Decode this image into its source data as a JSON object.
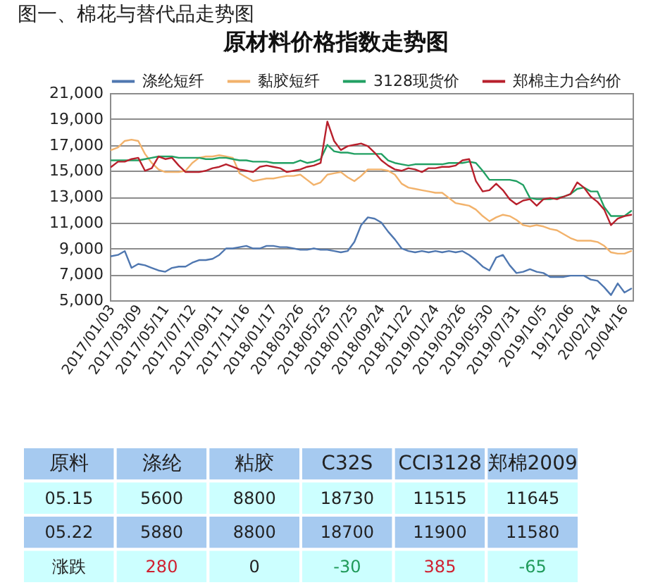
{
  "chart_data": [
    {
      "type": "line",
      "title": "原材料价格指数走势图",
      "annotations": [
        "图一、棉花与替代品走势图"
      ],
      "categories": [
        "2017/01/03",
        null,
        null,
        null,
        "2017/03/09",
        null,
        null,
        null,
        "2017/05/11",
        null,
        null,
        null,
        "2017/07/12",
        null,
        null,
        null,
        "2017/09/11",
        null,
        null,
        null,
        "2017/11/16",
        null,
        null,
        null,
        "2018/01/17",
        null,
        null,
        null,
        "2018/03/26",
        null,
        null,
        null,
        "2018/05/25",
        null,
        null,
        null,
        "2018/07/25",
        null,
        null,
        null,
        "2018/09/24",
        null,
        null,
        null,
        "2018/11/22",
        null,
        null,
        null,
        "2019/01/24",
        null,
        null,
        null,
        "2019/03/26",
        null,
        null,
        null,
        "2019/05/30",
        null,
        null,
        null,
        "2019/07/31",
        null,
        null,
        null,
        "2019/10/5",
        null,
        null,
        null,
        "19/12/06",
        null,
        null,
        null,
        "20/02/14",
        null,
        null,
        null,
        "20/04/16",
        null
      ],
      "series": [
        {
          "name": "涤纶短纤",
          "color": "#4f77b0",
          "values": [
            8400,
            8500,
            8800,
            7500,
            7800,
            7700,
            7500,
            7300,
            7200,
            7500,
            7600,
            7600,
            7900,
            8100,
            8100,
            8200,
            8500,
            9000,
            9000,
            9100,
            9200,
            9000,
            9000,
            9200,
            9200,
            9100,
            9100,
            9000,
            8900,
            8900,
            9000,
            8900,
            8900,
            8800,
            8700,
            8800,
            9500,
            10800,
            11400,
            11300,
            11000,
            10300,
            9700,
            9000,
            8800,
            8700,
            8800,
            8700,
            8800,
            8700,
            8800,
            8700,
            8800,
            8500,
            8100,
            7600,
            7300,
            8300,
            8500,
            7700,
            7100,
            7200,
            7400,
            7200,
            7100,
            6800,
            6800,
            6800,
            6900,
            6900,
            6900,
            6600,
            6500,
            6000,
            5400,
            6300,
            5600,
            5900
          ]
        },
        {
          "name": "黏胶短纤",
          "color": "#f2b26b",
          "values": [
            16600,
            16800,
            17300,
            17400,
            17300,
            16300,
            15600,
            15100,
            14900,
            14900,
            14900,
            15000,
            15600,
            16000,
            16100,
            16100,
            16200,
            16100,
            16000,
            14800,
            14500,
            14200,
            14300,
            14400,
            14400,
            14500,
            14600,
            14600,
            14700,
            14300,
            13900,
            14100,
            14700,
            14800,
            14900,
            14500,
            14200,
            14600,
            15100,
            15100,
            15100,
            15000,
            14700,
            14000,
            13700,
            13600,
            13500,
            13400,
            13300,
            13300,
            12900,
            12500,
            12400,
            12300,
            12000,
            11500,
            11100,
            11400,
            11600,
            11500,
            11200,
            10800,
            10700,
            10800,
            10700,
            10500,
            10400,
            10100,
            9800,
            9600,
            9600,
            9600,
            9500,
            9200,
            8700,
            8600,
            8600,
            8800
          ]
        },
        {
          "name": "3128现货价",
          "color": "#22a063",
          "values": [
            15800,
            15800,
            15800,
            15800,
            15800,
            15900,
            16000,
            16100,
            16100,
            16100,
            16000,
            16000,
            16000,
            16000,
            15900,
            15900,
            16000,
            16000,
            15900,
            15800,
            15800,
            15700,
            15700,
            15700,
            15600,
            15600,
            15600,
            15600,
            15800,
            15600,
            15700,
            15900,
            17000,
            16500,
            16400,
            16400,
            16300,
            16300,
            16300,
            16300,
            16300,
            15800,
            15600,
            15500,
            15400,
            15500,
            15500,
            15500,
            15500,
            15500,
            15600,
            15600,
            15600,
            15700,
            15600,
            15000,
            14300,
            14300,
            14300,
            14300,
            14200,
            13900,
            12900,
            12800,
            12800,
            12800,
            12900,
            13000,
            13200,
            13600,
            13700,
            13400,
            13400,
            12200,
            11500,
            11500,
            11500,
            11900
          ]
        },
        {
          "name": "郑棉主力合约价",
          "color": "#b8202c",
          "values": [
            15300,
            15700,
            15700,
            15900,
            16000,
            15000,
            15200,
            16100,
            15900,
            16000,
            15400,
            14900,
            14900,
            14900,
            15000,
            15200,
            15300,
            15500,
            15300,
            15100,
            15000,
            14900,
            15300,
            15400,
            15300,
            15200,
            14900,
            15000,
            15100,
            15300,
            15400,
            15600,
            18800,
            17300,
            16600,
            16900,
            17000,
            17100,
            16900,
            16400,
            15800,
            15400,
            15100,
            15000,
            15200,
            15100,
            14900,
            15200,
            15200,
            15300,
            15300,
            15400,
            15800,
            15900,
            14200,
            13400,
            13500,
            14000,
            13500,
            12800,
            12400,
            12700,
            12800,
            12300,
            12800,
            12900,
            12800,
            13000,
            13200,
            14100,
            13700,
            13000,
            12600,
            12000,
            10800,
            11300,
            11500,
            11600
          ]
        }
      ],
      "ylim": [
        5000,
        21000
      ],
      "yticks": [
        {
          "value": 5000,
          "label": "5,000"
        },
        {
          "value": 7000,
          "label": "7,000"
        },
        {
          "value": 9000,
          "label": "9,000"
        },
        {
          "value": 11000,
          "label": "11,000"
        },
        {
          "value": 13000,
          "label": "13,000"
        },
        {
          "value": 15000,
          "label": "15,000"
        },
        {
          "value": 17000,
          "label": "17,000"
        },
        {
          "value": 19000,
          "label": "19,000"
        },
        {
          "value": 21000,
          "label": "21,000"
        }
      ],
      "grid": "y",
      "legend": "top"
    },
    {
      "type": "other",
      "ylabel": "原料",
      "categories": [
        "涤纶",
        "粘胶",
        "C32S",
        "CCI3128",
        "郑棉2009"
      ],
      "series": [
        {
          "name": "05.15",
          "color": "#ccffff",
          "values": [
            5600,
            8800,
            18730,
            11515,
            11645
          ]
        },
        {
          "name": "05.22",
          "color": "#a6caf0",
          "values": [
            5880,
            8800,
            18700,
            11900,
            11580
          ]
        },
        {
          "name": "涨跌",
          "color": "#ccffff",
          "values": [
            280,
            0,
            -30,
            385,
            -65
          ]
        }
      ],
      "data_labels": true,
      "legend": "left"
    }
  ]
}
